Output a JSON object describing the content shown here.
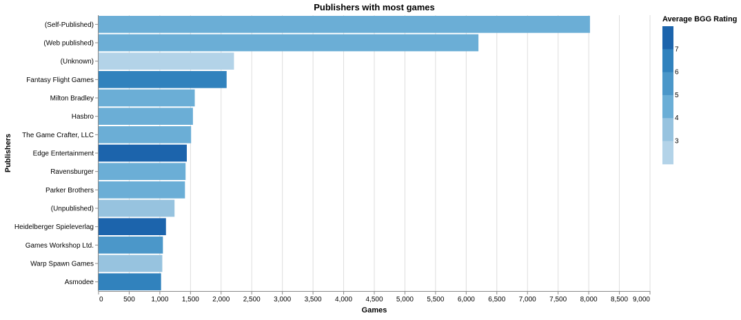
{
  "chart_data": {
    "type": "bar",
    "orientation": "horizontal",
    "title": "Publishers with most games",
    "xlabel": "Games",
    "ylabel": "Publishers",
    "xlim": [
      0,
      9000
    ],
    "x_ticks": [
      0,
      500,
      1000,
      1500,
      2000,
      2500,
      3000,
      3500,
      4000,
      4500,
      5000,
      5500,
      6000,
      6500,
      7000,
      7500,
      8000,
      8500,
      9000
    ],
    "x_tick_labels": [
      "0",
      "500",
      "1,000",
      "1,500",
      "2,000",
      "2,500",
      "3,000",
      "3,500",
      "4,000",
      "4,500",
      "5,000",
      "5,500",
      "6,000",
      "6,500",
      "7,000",
      "7,500",
      "8,000",
      "8,500",
      "9,000"
    ],
    "grid": true,
    "categories": [
      "(Self-Published)",
      "(Web published)",
      "(Unknown)",
      "Fantasy Flight Games",
      "Milton Bradley",
      "Hasbro",
      "The Game Crafter, LLC",
      "Edge Entertainment",
      "Ravensburger",
      "Parker Brothers",
      "(Unpublished)",
      "Heidelberger Spieleverlag",
      "Games Workshop Ltd.",
      "Warp Spawn Games",
      "Asmodee"
    ],
    "values": [
      8020,
      6200,
      2210,
      2090,
      1570,
      1540,
      1510,
      1440,
      1420,
      1410,
      1240,
      1100,
      1050,
      1040,
      1020
    ],
    "bar_colors": [
      "#6baed6",
      "#6baed6",
      "#b3d3e8",
      "#3182bd",
      "#6baed6",
      "#6baed6",
      "#6baed6",
      "#1c64ac",
      "#6baed6",
      "#6baed6",
      "#97c3df",
      "#1c64ac",
      "#4b97c9",
      "#97c3df",
      "#3182bd"
    ],
    "color_legend": {
      "title": "Average BGG Rating",
      "placement": "top-right",
      "labels": [
        "7",
        "6",
        "5",
        "4",
        "3"
      ],
      "bands": [
        "#1c64ac",
        "#3182bd",
        "#4b97c9",
        "#6baed6",
        "#97c3df",
        "#b3d3e8"
      ]
    },
    "grid_color": "#dddddd",
    "axis_color": "#888888"
  }
}
